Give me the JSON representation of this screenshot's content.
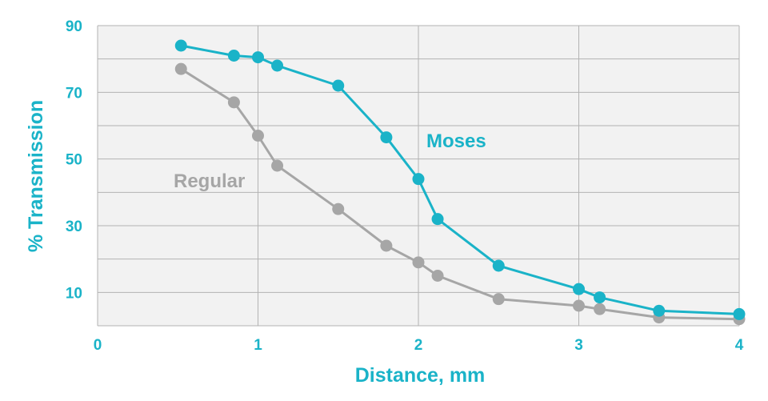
{
  "chart_data": {
    "type": "line",
    "xlabel": "Distance, mm",
    "ylabel": "% Transmission",
    "xlim": [
      0,
      4
    ],
    "ylim": [
      0,
      90
    ],
    "x_ticks": [
      0,
      1,
      2,
      3,
      4
    ],
    "y_ticks": [
      10,
      30,
      50,
      70,
      90
    ],
    "y_gridlines": [
      0,
      10,
      20,
      30,
      40,
      50,
      60,
      70,
      80,
      90
    ],
    "x_gridlines": [
      0,
      1,
      2,
      3,
      4
    ],
    "grid": true,
    "colors": {
      "axis_text": "#1ab3c8",
      "plot_background": "#f2f2f2",
      "grid_line": "#b3b3b3"
    },
    "series": [
      {
        "name": "Moses",
        "color": "#1ab3c8",
        "x": [
          0.52,
          0.85,
          1.0,
          1.12,
          1.5,
          1.8,
          2.0,
          2.12,
          2.5,
          3.0,
          3.13,
          3.5,
          4.0
        ],
        "y": [
          84,
          81,
          80.5,
          78,
          72,
          56.5,
          44,
          32,
          18,
          11,
          8.5,
          4.5,
          3.5
        ]
      },
      {
        "name": "Regular",
        "color": "#a6a6a6",
        "x": [
          0.52,
          0.85,
          1.0,
          1.12,
          1.5,
          1.8,
          2.0,
          2.12,
          2.5,
          3.0,
          3.13,
          3.5,
          4.0
        ],
        "y": [
          77,
          67,
          57,
          48,
          35,
          24,
          19,
          15,
          8,
          6,
          5,
          2.5,
          2
        ]
      }
    ]
  }
}
